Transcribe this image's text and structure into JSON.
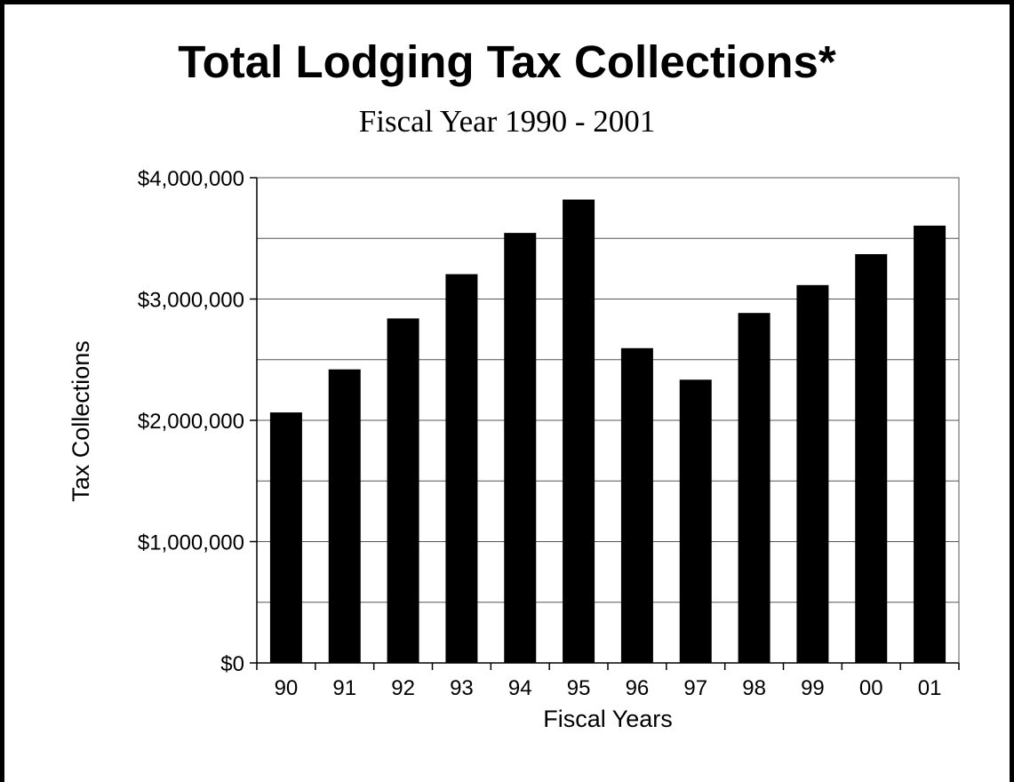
{
  "chart_data": {
    "type": "bar",
    "title": "Total Lodging Tax Collections*",
    "subtitle": "Fiscal Year 1990 - 2001",
    "xlabel": "Fiscal Years",
    "ylabel": "Tax Collections",
    "categories": [
      "90",
      "91",
      "92",
      "93",
      "94",
      "95",
      "96",
      "97",
      "98",
      "99",
      "00",
      "01"
    ],
    "values": [
      2065000,
      2420000,
      2840000,
      3205000,
      3545000,
      3820000,
      2595000,
      2335000,
      2885000,
      3115000,
      3370000,
      3605000
    ],
    "ylim": [
      0,
      4000000
    ],
    "yticks": [
      0,
      1000000,
      2000000,
      3000000,
      4000000
    ],
    "ytick_labels": [
      "$0",
      "$1,000,000",
      "$2,000,000",
      "$3,000,000",
      "$4,000,000"
    ],
    "minor_gridlines": [
      500000,
      1500000,
      2500000,
      3500000
    ],
    "grid": true,
    "bar_color": "#000000",
    "grid_color": "#555555"
  }
}
